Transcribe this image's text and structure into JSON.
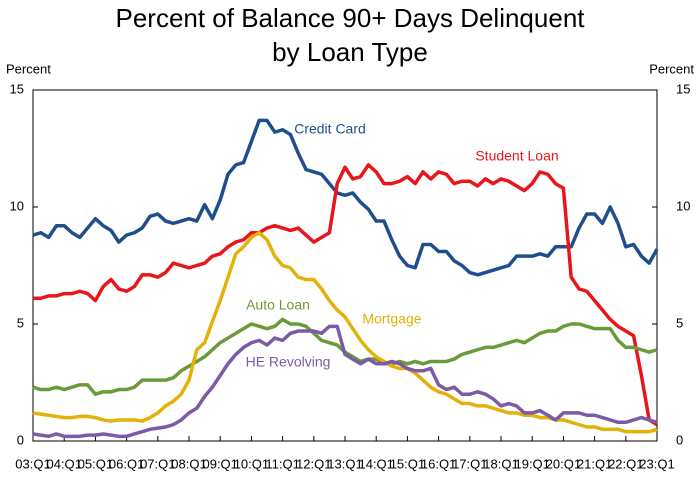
{
  "chart_data": {
    "type": "line",
    "title": [
      "Percent of Balance 90+ Days Delinquent",
      "by Loan Type"
    ],
    "y_label": "Percent",
    "y2_label": "Percent",
    "categories": [
      "03:Q1",
      null,
      null,
      null,
      "04:Q1",
      null,
      null,
      null,
      "05:Q1",
      null,
      null,
      null,
      "06:Q1",
      null,
      null,
      null,
      "07:Q1",
      null,
      null,
      null,
      "08:Q1",
      null,
      null,
      null,
      "09:Q1",
      null,
      null,
      null,
      "10:Q1",
      null,
      null,
      null,
      "11:Q1",
      null,
      null,
      null,
      "12:Q1",
      null,
      null,
      null,
      "13:Q1",
      null,
      null,
      null,
      "14:Q1",
      null,
      null,
      null,
      "15:Q1",
      null,
      null,
      null,
      "16:Q1",
      null,
      null,
      null,
      "17:Q1",
      null,
      null,
      null,
      "18:Q1",
      null,
      null,
      null,
      "19:Q1",
      null,
      null,
      null,
      "20:Q1",
      null,
      null,
      null,
      "21:Q1",
      null,
      null,
      null,
      "22:Q1",
      null,
      null,
      null,
      "23:Q1"
    ],
    "ylim": [
      0,
      15
    ],
    "yticks": [
      0,
      5,
      10,
      15
    ],
    "y2lim": [
      0,
      15
    ],
    "y2ticks": [
      0,
      5,
      10,
      15
    ],
    "grid": false,
    "series": [
      {
        "name": "Credit Card",
        "color": "#1f4e8c",
        "values": [
          8.8,
          8.9,
          8.7,
          9.2,
          9.2,
          8.9,
          8.7,
          9.1,
          9.5,
          9.2,
          9.0,
          8.5,
          8.8,
          8.9,
          9.1,
          9.6,
          9.7,
          9.4,
          9.3,
          9.4,
          9.5,
          9.4,
          10.1,
          9.5,
          10.3,
          11.4,
          11.8,
          11.9,
          12.8,
          13.7,
          13.7,
          13.2,
          13.3,
          13.1,
          12.3,
          11.6,
          11.5,
          11.4,
          11.0,
          10.6,
          10.5,
          10.6,
          10.2,
          9.9,
          9.4,
          9.4,
          8.6,
          7.9,
          7.5,
          7.4,
          8.4,
          8.4,
          8.1,
          8.1,
          7.7,
          7.5,
          7.2,
          7.1,
          7.2,
          7.3,
          7.4,
          7.5,
          7.9,
          7.9,
          7.9,
          8.0,
          7.9,
          8.3,
          8.3,
          8.3,
          9.1,
          9.7,
          9.7,
          9.3,
          10.0,
          9.3,
          8.3,
          8.4,
          7.9,
          7.6,
          8.2
        ]
      },
      {
        "name": "Student Loan",
        "color": "#e8161b",
        "values": [
          6.1,
          6.1,
          6.2,
          6.2,
          6.3,
          6.3,
          6.4,
          6.3,
          6.0,
          6.6,
          6.9,
          6.5,
          6.4,
          6.6,
          7.1,
          7.1,
          7.0,
          7.2,
          7.6,
          7.5,
          7.4,
          7.5,
          7.6,
          7.9,
          8.0,
          8.3,
          8.5,
          8.6,
          8.9,
          8.9,
          9.1,
          9.2,
          9.1,
          9.0,
          9.1,
          8.8,
          8.5,
          8.7,
          8.9,
          11.0,
          11.7,
          11.2,
          11.3,
          11.8,
          11.5,
          11.0,
          11.0,
          11.1,
          11.3,
          11.0,
          11.5,
          11.2,
          11.5,
          11.4,
          11.0,
          11.1,
          11.1,
          10.9,
          11.2,
          11.0,
          11.2,
          11.1,
          10.9,
          10.7,
          11.0,
          11.5,
          11.4,
          11.0,
          10.8,
          7.0,
          6.5,
          6.4,
          6.0,
          5.6,
          5.2,
          4.9,
          4.7,
          4.5,
          2.8,
          0.9,
          0.7
        ]
      },
      {
        "name": "Auto Loan",
        "color": "#6a9a3a",
        "values": [
          2.3,
          2.2,
          2.2,
          2.3,
          2.2,
          2.3,
          2.4,
          2.4,
          2.0,
          2.1,
          2.1,
          2.2,
          2.2,
          2.3,
          2.6,
          2.6,
          2.6,
          2.6,
          2.7,
          3.0,
          3.2,
          3.4,
          3.6,
          3.9,
          4.2,
          4.4,
          4.6,
          4.8,
          5.0,
          4.9,
          4.8,
          4.9,
          5.2,
          5.0,
          5.0,
          4.9,
          4.6,
          4.3,
          4.2,
          4.1,
          3.8,
          3.6,
          3.4,
          3.5,
          3.5,
          3.3,
          3.3,
          3.4,
          3.3,
          3.4,
          3.3,
          3.4,
          3.4,
          3.4,
          3.5,
          3.7,
          3.8,
          3.9,
          4.0,
          4.0,
          4.1,
          4.2,
          4.3,
          4.2,
          4.4,
          4.6,
          4.7,
          4.7,
          4.9,
          5.0,
          5.0,
          4.9,
          4.8,
          4.8,
          4.8,
          4.3,
          4.0,
          4.0,
          3.9,
          3.8,
          3.9
        ]
      },
      {
        "name": "Mortgage",
        "color": "#e3b10a",
        "values": [
          1.2,
          1.15,
          1.1,
          1.05,
          1.0,
          1.0,
          1.05,
          1.05,
          1.0,
          0.9,
          0.85,
          0.9,
          0.9,
          0.9,
          0.85,
          1.0,
          1.2,
          1.5,
          1.7,
          2.0,
          2.6,
          3.9,
          4.2,
          5.1,
          6.0,
          7.0,
          8.0,
          8.3,
          8.7,
          8.9,
          8.6,
          7.9,
          7.5,
          7.4,
          7.0,
          6.9,
          6.9,
          6.5,
          6.0,
          5.6,
          5.3,
          4.8,
          4.3,
          3.9,
          3.6,
          3.4,
          3.2,
          3.1,
          3.1,
          2.9,
          2.6,
          2.3,
          2.1,
          2.0,
          1.8,
          1.6,
          1.6,
          1.5,
          1.5,
          1.4,
          1.3,
          1.2,
          1.2,
          1.1,
          1.1,
          1.0,
          1.0,
          0.9,
          0.9,
          0.8,
          0.7,
          0.6,
          0.6,
          0.5,
          0.5,
          0.5,
          0.4,
          0.4,
          0.4,
          0.4,
          0.5
        ]
      },
      {
        "name": "HE Revolving",
        "color": "#7b5ba6",
        "values": [
          0.3,
          0.25,
          0.2,
          0.3,
          0.2,
          0.2,
          0.2,
          0.25,
          0.25,
          0.3,
          0.25,
          0.2,
          0.2,
          0.3,
          0.4,
          0.5,
          0.55,
          0.6,
          0.7,
          0.9,
          1.2,
          1.4,
          1.9,
          2.3,
          2.8,
          3.3,
          3.7,
          4.0,
          4.2,
          4.3,
          4.1,
          4.4,
          4.3,
          4.6,
          4.7,
          4.7,
          4.7,
          4.6,
          4.9,
          4.9,
          3.7,
          3.5,
          3.3,
          3.5,
          3.3,
          3.3,
          3.4,
          3.3,
          3.1,
          3.0,
          3.0,
          3.1,
          2.4,
          2.2,
          2.3,
          2.0,
          2.0,
          2.1,
          2.0,
          1.8,
          1.5,
          1.6,
          1.5,
          1.2,
          1.2,
          1.3,
          1.1,
          0.9,
          1.2,
          1.2,
          1.2,
          1.1,
          1.1,
          1.0,
          0.9,
          0.8,
          0.8,
          0.9,
          1.0,
          0.9,
          0.8
        ]
      }
    ]
  }
}
